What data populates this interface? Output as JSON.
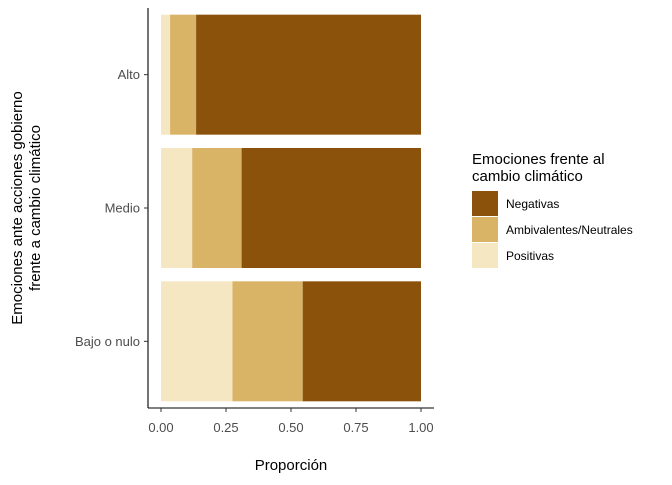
{
  "chart_data": {
    "type": "bar",
    "orientation": "horizontal",
    "stacked": true,
    "categories": [
      "Bajo o nulo",
      "Medio",
      "Alto"
    ],
    "series": [
      {
        "name": "Positivas",
        "values": [
          0.275,
          0.12,
          0.035
        ],
        "color": "#F5E7C2"
      },
      {
        "name": "Ambivalentes/Neutrales",
        "values": [
          0.27,
          0.19,
          0.1
        ],
        "color": "#D9B366"
      },
      {
        "name": "Negativas",
        "values": [
          0.455,
          0.69,
          0.865
        ],
        "color": "#8B520C"
      }
    ],
    "xlabel": "Proporción",
    "ylabel_lines": [
      "Emociones ante acciones gobierno",
      "frente a cambio climático"
    ],
    "xlim": [
      0,
      1
    ],
    "x_ticks": [
      0,
      0.25,
      0.5,
      0.75,
      1
    ],
    "x_tick_labels": [
      "0.00",
      "0.25",
      "0.50",
      "0.75",
      "1.00"
    ],
    "grid": false,
    "legend": {
      "position": "right",
      "title_lines": [
        "Emociones frente al",
        "cambio climático"
      ],
      "order": [
        "Negativas",
        "Ambivalentes/Neutrales",
        "Positivas"
      ]
    }
  }
}
